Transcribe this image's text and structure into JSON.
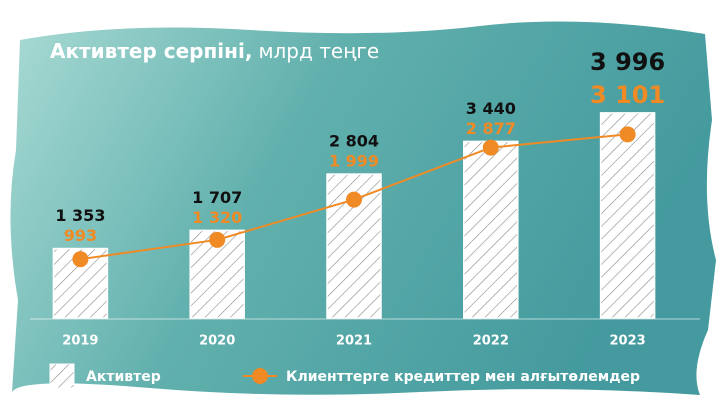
{
  "chart_data": {
    "type": "bar",
    "title": "Активтер серпіні,",
    "unit": "млрд теңге",
    "categories": [
      "2019",
      "2020",
      "2021",
      "2022",
      "2023"
    ],
    "ylim": [
      0,
      4500
    ],
    "y2lim": [
      0,
      3900
    ],
    "series": [
      {
        "name": "Активтер",
        "color": "#ffffff",
        "values": [
          1353,
          1707,
          2804,
          3440,
          3996
        ],
        "value_labels": [
          "1 353",
          "1 707",
          "2 804",
          "3 440",
          "3 996"
        ]
      },
      {
        "name": "Клиенттерге кредиттер мен алғытөлемдер",
        "color": "#f08a24",
        "axis": "y2",
        "values": [
          993,
          1320,
          1999,
          2877,
          3101
        ],
        "value_labels": [
          "993",
          "1 320",
          "1 999",
          "2 877",
          "3 101"
        ]
      }
    ]
  }
}
